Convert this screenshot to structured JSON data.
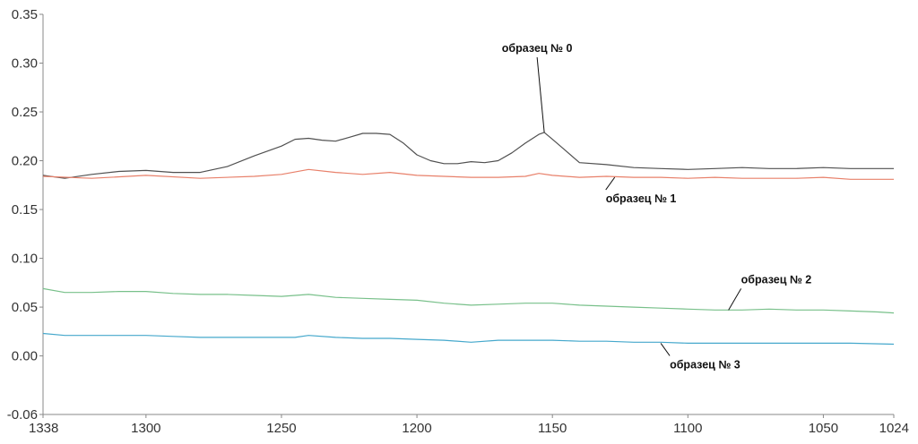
{
  "chart_data": {
    "type": "line",
    "title": "",
    "xlabel": "",
    "ylabel": "",
    "xlim": [
      1338,
      1024
    ],
    "ylim": [
      -0.06,
      0.35
    ],
    "x_reversed": true,
    "grid": false,
    "legend": "none",
    "xticks": [
      {
        "value": 1338,
        "label": "1338"
      },
      {
        "value": 1300,
        "label": "1300"
      },
      {
        "value": 1250,
        "label": "1250"
      },
      {
        "value": 1200,
        "label": "1200"
      },
      {
        "value": 1150,
        "label": "1150"
      },
      {
        "value": 1100,
        "label": "1100"
      },
      {
        "value": 1050,
        "label": "1050"
      },
      {
        "value": 1024,
        "label": "1024"
      }
    ],
    "yticks": [
      {
        "value": 0.35,
        "label": "0.35"
      },
      {
        "value": 0.3,
        "label": "0.30"
      },
      {
        "value": 0.25,
        "label": "0.25"
      },
      {
        "value": 0.2,
        "label": "0.20"
      },
      {
        "value": 0.15,
        "label": "0.15"
      },
      {
        "value": 0.1,
        "label": "0.10"
      },
      {
        "value": 0.05,
        "label": "0.05"
      },
      {
        "value": 0.0,
        "label": "0.00"
      },
      {
        "value": -0.06,
        "label": "-0.06"
      }
    ],
    "series": [
      {
        "name": "образец № 0",
        "color": "#505050",
        "x": [
          1338,
          1330,
          1320,
          1310,
          1300,
          1290,
          1280,
          1270,
          1260,
          1250,
          1245,
          1240,
          1235,
          1230,
          1225,
          1220,
          1215,
          1210,
          1205,
          1200,
          1195,
          1190,
          1185,
          1180,
          1175,
          1170,
          1165,
          1160,
          1155,
          1153,
          1150,
          1145,
          1140,
          1130,
          1120,
          1110,
          1100,
          1090,
          1080,
          1070,
          1060,
          1050,
          1040,
          1030,
          1024
        ],
        "y": [
          0.185,
          0.182,
          0.186,
          0.189,
          0.19,
          0.188,
          0.188,
          0.194,
          0.205,
          0.215,
          0.222,
          0.223,
          0.221,
          0.22,
          0.224,
          0.228,
          0.228,
          0.227,
          0.218,
          0.206,
          0.2,
          0.197,
          0.197,
          0.199,
          0.198,
          0.2,
          0.208,
          0.218,
          0.227,
          0.229,
          0.222,
          0.21,
          0.198,
          0.196,
          0.193,
          0.192,
          0.191,
          0.192,
          0.193,
          0.192,
          0.192,
          0.193,
          0.192,
          0.192,
          0.192
        ],
        "annotation": {
          "text": "образец № 0",
          "x": 1153,
          "y": 0.229
        }
      },
      {
        "name": "образец № 1",
        "color": "#e8806a",
        "x": [
          1338,
          1320,
          1300,
          1280,
          1260,
          1250,
          1240,
          1230,
          1220,
          1210,
          1200,
          1190,
          1180,
          1170,
          1160,
          1155,
          1150,
          1140,
          1130,
          1120,
          1110,
          1100,
          1090,
          1080,
          1070,
          1060,
          1050,
          1040,
          1024
        ],
        "y": [
          0.184,
          0.182,
          0.185,
          0.182,
          0.184,
          0.186,
          0.191,
          0.188,
          0.186,
          0.188,
          0.185,
          0.184,
          0.183,
          0.183,
          0.184,
          0.187,
          0.185,
          0.183,
          0.184,
          0.183,
          0.183,
          0.182,
          0.183,
          0.182,
          0.182,
          0.182,
          0.183,
          0.181,
          0.181
        ],
        "annotation": {
          "text": "образец № 1",
          "x": 1127,
          "y": 0.183
        }
      },
      {
        "name": "образец № 2",
        "color": "#78c08a",
        "x": [
          1338,
          1330,
          1320,
          1310,
          1300,
          1290,
          1280,
          1270,
          1260,
          1250,
          1240,
          1230,
          1220,
          1210,
          1200,
          1190,
          1180,
          1170,
          1160,
          1150,
          1140,
          1130,
          1120,
          1110,
          1100,
          1090,
          1080,
          1070,
          1060,
          1050,
          1040,
          1030,
          1024
        ],
        "y": [
          0.069,
          0.065,
          0.065,
          0.066,
          0.066,
          0.064,
          0.063,
          0.063,
          0.062,
          0.061,
          0.063,
          0.06,
          0.059,
          0.058,
          0.057,
          0.054,
          0.052,
          0.053,
          0.054,
          0.054,
          0.052,
          0.051,
          0.05,
          0.049,
          0.048,
          0.047,
          0.047,
          0.048,
          0.047,
          0.047,
          0.046,
          0.045,
          0.044
        ],
        "annotation": {
          "text": "образец № 2",
          "x": 1085,
          "y": 0.047
        }
      },
      {
        "name": "образец № 3",
        "color": "#45a8cc",
        "x": [
          1338,
          1330,
          1320,
          1310,
          1300,
          1290,
          1280,
          1270,
          1260,
          1250,
          1245,
          1240,
          1230,
          1220,
          1210,
          1200,
          1190,
          1180,
          1170,
          1160,
          1150,
          1140,
          1130,
          1120,
          1110,
          1100,
          1090,
          1080,
          1070,
          1060,
          1050,
          1040,
          1024
        ],
        "y": [
          0.023,
          0.021,
          0.021,
          0.021,
          0.021,
          0.02,
          0.019,
          0.019,
          0.019,
          0.019,
          0.019,
          0.021,
          0.019,
          0.018,
          0.018,
          0.017,
          0.016,
          0.014,
          0.016,
          0.016,
          0.016,
          0.015,
          0.015,
          0.014,
          0.014,
          0.013,
          0.013,
          0.013,
          0.013,
          0.013,
          0.013,
          0.013,
          0.012
        ],
        "annotation": {
          "text": "образец № 3",
          "x": 1110,
          "y": 0.013
        }
      }
    ]
  }
}
